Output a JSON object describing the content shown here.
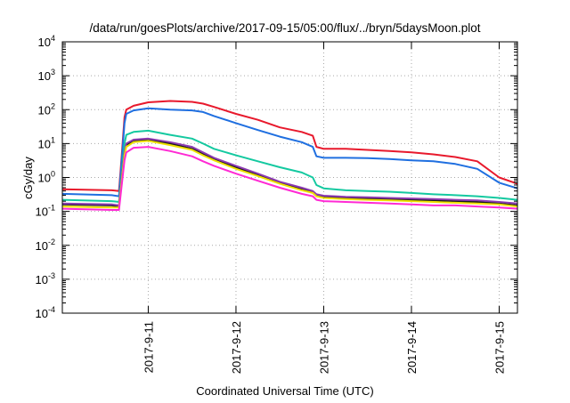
{
  "chart_data": {
    "type": "line",
    "title": "/data/run/goesPlots/archive/2017-09-15/05:00/flux/../bryn/5daysMoon.plot",
    "xlabel": "Coordinated Universal Time (UTC)",
    "ylabel": "cGy/day",
    "y_scale": "log",
    "ylim": [
      0.0001,
      10000
    ],
    "y_ticks": [
      {
        "value": 0.0001,
        "base": "10",
        "exp": "-4"
      },
      {
        "value": 0.001,
        "base": "10",
        "exp": "-3"
      },
      {
        "value": 0.01,
        "base": "10",
        "exp": "-2"
      },
      {
        "value": 0.1,
        "base": "10",
        "exp": "-1"
      },
      {
        "value": 1,
        "base": "10",
        "exp": "0"
      },
      {
        "value": 10,
        "base": "10",
        "exp": "1"
      },
      {
        "value": 100,
        "base": "10",
        "exp": "2"
      },
      {
        "value": 1000,
        "base": "10",
        "exp": "3"
      },
      {
        "value": 10000,
        "base": "10",
        "exp": "4"
      }
    ],
    "x_start": "2017-09-10T00:30",
    "x_end": "2017-09-15T05:00",
    "x_ticks": [
      {
        "date": "2017-09-11T00:00",
        "label": "2017-9-11"
      },
      {
        "date": "2017-09-12T00:00",
        "label": "2017-9-12"
      },
      {
        "date": "2017-09-13T00:00",
        "label": "2017-9-13"
      },
      {
        "date": "2017-09-14T00:00",
        "label": "2017-9-14"
      },
      {
        "date": "2017-09-15T00:00",
        "label": "2017-9-15"
      }
    ],
    "grid": true,
    "legend": "none",
    "x": [
      "2017-09-10T00:30",
      "2017-09-10T14:00",
      "2017-09-10T16:00",
      "2017-09-10T16:30",
      "2017-09-10T17:30",
      "2017-09-10T18:00",
      "2017-09-10T20:00",
      "2017-09-11T00:00",
      "2017-09-11T06:00",
      "2017-09-11T12:00",
      "2017-09-11T15:00",
      "2017-09-11T18:00",
      "2017-09-12T00:00",
      "2017-09-12T06:00",
      "2017-09-12T12:00",
      "2017-09-12T18:00",
      "2017-09-12T21:00",
      "2017-09-12T22:00",
      "2017-09-13T00:00",
      "2017-09-13T06:00",
      "2017-09-13T12:00",
      "2017-09-13T18:00",
      "2017-09-14T00:00",
      "2017-09-14T06:00",
      "2017-09-14T12:00",
      "2017-09-14T18:00",
      "2017-09-15T00:00",
      "2017-09-15T05:00"
    ],
    "series": [
      {
        "color": "#e8192c",
        "values": [
          0.45,
          0.42,
          0.4,
          2.0,
          60,
          100,
          130,
          165,
          180,
          170,
          150,
          120,
          75,
          50,
          30,
          22,
          17,
          8,
          7,
          7,
          6.5,
          6,
          5.5,
          4.8,
          4.0,
          3.0,
          1.0,
          0.65
        ]
      },
      {
        "color": "#1f6fe0",
        "values": [
          0.33,
          0.3,
          0.28,
          1.5,
          40,
          75,
          95,
          110,
          100,
          95,
          85,
          65,
          40,
          25,
          16,
          11,
          8,
          4.2,
          3.8,
          3.8,
          3.7,
          3.5,
          3.2,
          3.0,
          2.5,
          1.8,
          0.7,
          0.48
        ]
      },
      {
        "color": "#14c9a0",
        "values": [
          0.22,
          0.2,
          0.19,
          0.7,
          10,
          18,
          22,
          24,
          18,
          14,
          10,
          7,
          4.5,
          3.0,
          2.0,
          1.4,
          1.0,
          0.6,
          0.48,
          0.42,
          0.4,
          0.38,
          0.35,
          0.32,
          0.3,
          0.28,
          0.25,
          0.22
        ]
      },
      {
        "color": "#1a1a1a",
        "values": [
          0.16,
          0.15,
          0.14,
          0.5,
          5,
          9,
          12,
          13,
          10,
          7,
          5,
          3.5,
          2.0,
          1.2,
          0.7,
          0.45,
          0.37,
          0.3,
          0.27,
          0.25,
          0.24,
          0.23,
          0.22,
          0.21,
          0.2,
          0.19,
          0.17,
          0.15
        ]
      },
      {
        "color": "#8c3ab0",
        "values": [
          0.17,
          0.16,
          0.15,
          0.55,
          5.5,
          10,
          13,
          14,
          11,
          8,
          5.5,
          3.8,
          2.2,
          1.3,
          0.75,
          0.5,
          0.4,
          0.32,
          0.29,
          0.27,
          0.26,
          0.25,
          0.24,
          0.23,
          0.22,
          0.21,
          0.19,
          0.17
        ]
      },
      {
        "color": "#f0e000",
        "values": [
          0.14,
          0.13,
          0.13,
          0.45,
          4.5,
          8,
          11,
          12,
          9,
          6.5,
          4.5,
          3.2,
          1.8,
          1.1,
          0.65,
          0.42,
          0.35,
          0.28,
          0.25,
          0.23,
          0.22,
          0.21,
          0.2,
          0.19,
          0.18,
          0.17,
          0.16,
          0.14
        ]
      },
      {
        "color": "#ff2ad4",
        "values": [
          0.12,
          0.11,
          0.11,
          0.35,
          3.2,
          5.5,
          7.5,
          8,
          6,
          4.2,
          3.0,
          2.2,
          1.3,
          0.8,
          0.5,
          0.33,
          0.28,
          0.22,
          0.2,
          0.19,
          0.18,
          0.17,
          0.16,
          0.15,
          0.15,
          0.14,
          0.13,
          0.12
        ]
      }
    ]
  }
}
